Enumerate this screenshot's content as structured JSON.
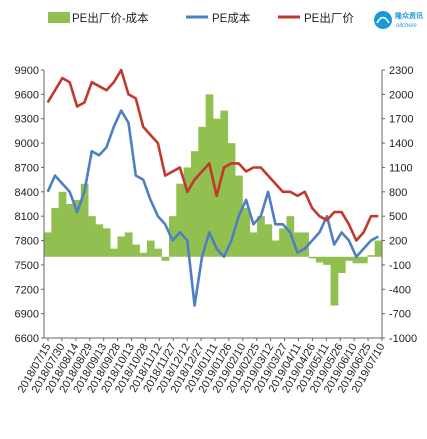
{
  "logo": {
    "name": "隆众资讯",
    "subtitle": "oilchem"
  },
  "chart_data": {
    "type": "line",
    "title": "",
    "xlabel": "",
    "ylabel": "",
    "y_left": {
      "min": 6600,
      "max": 9900,
      "ticks": [
        6600,
        6900,
        7200,
        7500,
        7800,
        8100,
        8400,
        8700,
        9000,
        9300,
        9600,
        9900
      ]
    },
    "y_right": {
      "min": -1000,
      "max": 2300,
      "ticks": [
        -1000,
        -700,
        -400,
        -100,
        200,
        500,
        800,
        1100,
        1400,
        1700,
        2000,
        2300
      ]
    },
    "x_ticks": [
      "2018/07/15",
      "2018/07/30",
      "2018/08/14",
      "2018/08/29",
      "2018/09/13",
      "2018/09/28",
      "2018/10/13",
      "2018/10/28",
      "2018/11/12",
      "2018/11/27",
      "2018/12/12",
      "2018/12/27",
      "2019/01/11",
      "2019/01/26",
      "2019/02/10",
      "2019/02/25",
      "2019/03/12",
      "2019/03/27",
      "2019/04/11",
      "2019/04/26",
      "2019/05/11",
      "2019/05/26",
      "2019/06/10",
      "2019/06/25",
      "2019/07/10"
    ],
    "legend_position": "top",
    "grid": false,
    "colors": {
      "spread": "#92c050",
      "cost": "#4e7fc4",
      "price": "#c0392b"
    },
    "series": [
      {
        "name": "PE出厂价-成本",
        "axis": "right",
        "type": "area",
        "values": [
          300,
          600,
          800,
          650,
          700,
          900,
          500,
          400,
          350,
          100,
          250,
          300,
          150,
          50,
          200,
          100,
          -50,
          500,
          900,
          1100,
          1300,
          1600,
          2000,
          1700,
          1800,
          1400,
          1000,
          600,
          300,
          500,
          400,
          200,
          350,
          500,
          300,
          300,
          -20,
          -70,
          -100,
          -600,
          -200,
          -50,
          -80,
          -80,
          20,
          200
        ]
      },
      {
        "name": "PE成本",
        "axis": "left",
        "type": "line",
        "values": [
          8400,
          8600,
          8500,
          8400,
          8150,
          8400,
          8900,
          8850,
          8950,
          9200,
          9400,
          9250,
          8600,
          8550,
          8300,
          8100,
          8000,
          7800,
          7900,
          7800,
          7000,
          7600,
          7900,
          7700,
          7600,
          7800,
          8100,
          8300,
          8000,
          8100,
          8400,
          8000,
          8000,
          7900,
          7650,
          7700,
          7800,
          7900,
          8100,
          7750,
          7900,
          7800,
          7600,
          7700,
          7800,
          7850
        ]
      },
      {
        "name": "PE出厂价",
        "axis": "left",
        "type": "line",
        "values": [
          9500,
          9650,
          9800,
          9750,
          9450,
          9500,
          9750,
          9700,
          9650,
          9750,
          9900,
          9600,
          9550,
          9200,
          9100,
          9000,
          8600,
          8650,
          8700,
          8400,
          8550,
          8650,
          8750,
          8350,
          8700,
          8750,
          8750,
          8650,
          8700,
          8700,
          8600,
          8500,
          8400,
          8400,
          8350,
          8400,
          8200,
          8100,
          8050,
          8150,
          8150,
          8000,
          7800,
          7900,
          8100,
          8100
        ]
      }
    ]
  }
}
